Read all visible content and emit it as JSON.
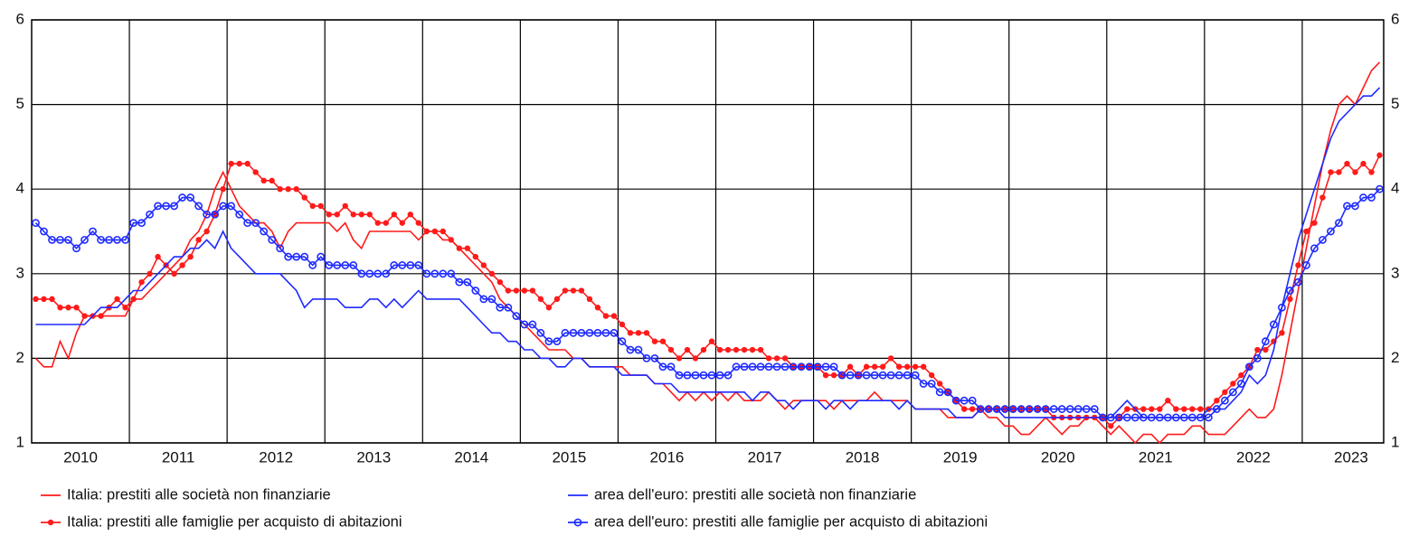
{
  "chart_data": {
    "type": "line",
    "categories": [
      null,
      null,
      null,
      null,
      null,
      null,
      "2010",
      null,
      null,
      null,
      null,
      null,
      null,
      null,
      null,
      null,
      null,
      null,
      "2011",
      null,
      null,
      null,
      null,
      null,
      null,
      null,
      null,
      null,
      null,
      null,
      "2012",
      null,
      null,
      null,
      null,
      null,
      null,
      null,
      null,
      null,
      null,
      null,
      "2013",
      null,
      null,
      null,
      null,
      null,
      null,
      null,
      null,
      null,
      null,
      null,
      "2014",
      null,
      null,
      null,
      null,
      null,
      null,
      null,
      null,
      null,
      null,
      null,
      "2015",
      null,
      null,
      null,
      null,
      null,
      null,
      null,
      null,
      null,
      null,
      null,
      "2016",
      null,
      null,
      null,
      null,
      null,
      null,
      null,
      null,
      null,
      null,
      null,
      "2017",
      null,
      null,
      null,
      null,
      null,
      null,
      null,
      null,
      null,
      null,
      null,
      "2018",
      null,
      null,
      null,
      null,
      null,
      null,
      null,
      null,
      null,
      null,
      null,
      "2019",
      null,
      null,
      null,
      null,
      null,
      null,
      null,
      null,
      null,
      null,
      null,
      "2020",
      null,
      null,
      null,
      null,
      null,
      null,
      null,
      null,
      null,
      null,
      null,
      "2021",
      null,
      null,
      null,
      null,
      null,
      null,
      null,
      null,
      null,
      null,
      null,
      "2022",
      null,
      null,
      null,
      null,
      null,
      null,
      null,
      null,
      null,
      null,
      null,
      "2023",
      null,
      null,
      null
    ],
    "series": [
      {
        "name": "Italia: prestiti alle società non finanziarie",
        "color": "#ff1a1a",
        "marker": "none",
        "values": [
          2.0,
          1.9,
          1.9,
          2.2,
          2.0,
          2.3,
          2.5,
          2.5,
          2.5,
          2.5,
          2.5,
          2.5,
          2.7,
          2.7,
          2.8,
          2.9,
          3.0,
          3.1,
          3.2,
          3.4,
          3.5,
          3.7,
          4.0,
          4.2,
          4.0,
          3.8,
          3.7,
          3.6,
          3.6,
          3.5,
          3.3,
          3.5,
          3.6,
          3.6,
          3.6,
          3.6,
          3.6,
          3.5,
          3.6,
          3.4,
          3.3,
          3.5,
          3.5,
          3.5,
          3.5,
          3.5,
          3.5,
          3.4,
          3.5,
          3.5,
          3.4,
          3.4,
          3.3,
          3.2,
          3.1,
          3.0,
          2.9,
          2.7,
          2.6,
          2.5,
          2.4,
          2.3,
          2.2,
          2.1,
          2.1,
          2.1,
          2.0,
          2.0,
          1.9,
          1.9,
          1.9,
          1.9,
          1.9,
          1.8,
          1.8,
          1.8,
          1.7,
          1.7,
          1.6,
          1.5,
          1.6,
          1.5,
          1.6,
          1.5,
          1.6,
          1.5,
          1.6,
          1.5,
          1.5,
          1.5,
          1.6,
          1.5,
          1.4,
          1.5,
          1.5,
          1.5,
          1.5,
          1.5,
          1.4,
          1.5,
          1.5,
          1.5,
          1.5,
          1.6,
          1.5,
          1.5,
          1.5,
          1.5,
          1.4,
          1.4,
          1.4,
          1.4,
          1.3,
          1.3,
          1.3,
          1.3,
          1.4,
          1.3,
          1.3,
          1.2,
          1.2,
          1.1,
          1.1,
          1.2,
          1.3,
          1.2,
          1.1,
          1.2,
          1.2,
          1.3,
          1.3,
          1.2,
          1.1,
          1.2,
          1.1,
          1.0,
          1.1,
          1.1,
          1.0,
          1.1,
          1.1,
          1.1,
          1.2,
          1.2,
          1.1,
          1.1,
          1.1,
          1.2,
          1.3,
          1.4,
          1.3,
          1.3,
          1.4,
          1.8,
          2.3,
          2.8,
          3.3,
          3.8,
          4.3,
          4.7,
          5.0,
          5.1,
          5.0,
          5.2,
          5.4,
          5.5
        ]
      },
      {
        "name": "Italia: prestiti alle famiglie per acquisto di abitazioni",
        "color": "#ff1a1a",
        "marker": "dot",
        "values": [
          2.7,
          2.7,
          2.7,
          2.6,
          2.6,
          2.6,
          2.5,
          2.5,
          2.5,
          2.6,
          2.7,
          2.6,
          2.7,
          2.9,
          3.0,
          3.2,
          3.1,
          3.0,
          3.1,
          3.2,
          3.4,
          3.5,
          3.7,
          4.0,
          4.3,
          4.3,
          4.3,
          4.2,
          4.1,
          4.1,
          4.0,
          4.0,
          4.0,
          3.9,
          3.8,
          3.8,
          3.7,
          3.7,
          3.8,
          3.7,
          3.7,
          3.7,
          3.6,
          3.6,
          3.7,
          3.6,
          3.7,
          3.6,
          3.5,
          3.5,
          3.5,
          3.4,
          3.3,
          3.3,
          3.2,
          3.1,
          3.0,
          2.9,
          2.8,
          2.8,
          2.8,
          2.8,
          2.7,
          2.6,
          2.7,
          2.8,
          2.8,
          2.8,
          2.7,
          2.6,
          2.5,
          2.5,
          2.4,
          2.3,
          2.3,
          2.3,
          2.2,
          2.2,
          2.1,
          2.0,
          2.1,
          2.0,
          2.1,
          2.2,
          2.1,
          2.1,
          2.1,
          2.1,
          2.1,
          2.1,
          2.0,
          2.0,
          2.0,
          1.9,
          1.9,
          1.9,
          1.9,
          1.8,
          1.8,
          1.8,
          1.9,
          1.8,
          1.9,
          1.9,
          1.9,
          2.0,
          1.9,
          1.9,
          1.9,
          1.9,
          1.8,
          1.7,
          1.6,
          1.5,
          1.4,
          1.4,
          1.4,
          1.4,
          1.4,
          1.4,
          1.4,
          1.4,
          1.4,
          1.4,
          1.4,
          1.3,
          1.3,
          1.3,
          1.3,
          1.3,
          1.3,
          1.3,
          1.2,
          1.3,
          1.4,
          1.4,
          1.4,
          1.4,
          1.4,
          1.5,
          1.4,
          1.4,
          1.4,
          1.4,
          1.4,
          1.5,
          1.6,
          1.7,
          1.8,
          1.9,
          2.1,
          2.1,
          2.2,
          2.3,
          2.7,
          3.1,
          3.5,
          3.6,
          3.9,
          4.2,
          4.2,
          4.3,
          4.2,
          4.3,
          4.2,
          4.4
        ]
      },
      {
        "name": "area dell'euro: prestiti alle società non finanziarie",
        "color": "#1f2bff",
        "marker": "none",
        "values": [
          2.4,
          2.4,
          2.4,
          2.4,
          2.4,
          2.4,
          2.4,
          2.5,
          2.6,
          2.6,
          2.6,
          2.7,
          2.8,
          2.8,
          2.9,
          3.0,
          3.1,
          3.2,
          3.2,
          3.3,
          3.3,
          3.4,
          3.3,
          3.5,
          3.3,
          3.2,
          3.1,
          3.0,
          3.0,
          3.0,
          3.0,
          2.9,
          2.8,
          2.6,
          2.7,
          2.7,
          2.7,
          2.7,
          2.6,
          2.6,
          2.6,
          2.7,
          2.7,
          2.6,
          2.7,
          2.6,
          2.7,
          2.8,
          2.7,
          2.7,
          2.7,
          2.7,
          2.7,
          2.6,
          2.5,
          2.4,
          2.3,
          2.3,
          2.2,
          2.2,
          2.1,
          2.1,
          2.0,
          2.0,
          1.9,
          1.9,
          2.0,
          2.0,
          1.9,
          1.9,
          1.9,
          1.9,
          1.8,
          1.8,
          1.8,
          1.8,
          1.7,
          1.7,
          1.7,
          1.6,
          1.6,
          1.6,
          1.6,
          1.6,
          1.6,
          1.6,
          1.6,
          1.6,
          1.5,
          1.6,
          1.6,
          1.5,
          1.5,
          1.4,
          1.5,
          1.5,
          1.5,
          1.4,
          1.5,
          1.5,
          1.4,
          1.5,
          1.5,
          1.5,
          1.5,
          1.5,
          1.4,
          1.5,
          1.4,
          1.4,
          1.4,
          1.4,
          1.4,
          1.3,
          1.3,
          1.3,
          1.4,
          1.4,
          1.4,
          1.3,
          1.3,
          1.3,
          1.3,
          1.3,
          1.3,
          1.3,
          1.3,
          1.3,
          1.3,
          1.3,
          1.3,
          1.3,
          1.3,
          1.4,
          1.5,
          1.4,
          1.3,
          1.3,
          1.3,
          1.3,
          1.3,
          1.3,
          1.3,
          1.3,
          1.4,
          1.4,
          1.4,
          1.5,
          1.6,
          1.8,
          1.7,
          1.8,
          2.1,
          2.6,
          3.0,
          3.4,
          3.7,
          4.0,
          4.3,
          4.6,
          4.8,
          4.9,
          5.0,
          5.1,
          5.1,
          5.2
        ]
      },
      {
        "name": "area dell'euro: prestiti alle famiglie per acquisto di abitazioni",
        "color": "#1f2bff",
        "marker": "circle",
        "values": [
          3.6,
          3.5,
          3.4,
          3.4,
          3.4,
          3.3,
          3.4,
          3.5,
          3.4,
          3.4,
          3.4,
          3.4,
          3.6,
          3.6,
          3.7,
          3.8,
          3.8,
          3.8,
          3.9,
          3.9,
          3.8,
          3.7,
          3.7,
          3.8,
          3.8,
          3.7,
          3.6,
          3.6,
          3.5,
          3.4,
          3.3,
          3.2,
          3.2,
          3.2,
          3.1,
          3.2,
          3.1,
          3.1,
          3.1,
          3.1,
          3.0,
          3.0,
          3.0,
          3.0,
          3.1,
          3.1,
          3.1,
          3.1,
          3.0,
          3.0,
          3.0,
          3.0,
          2.9,
          2.9,
          2.8,
          2.7,
          2.7,
          2.6,
          2.6,
          2.5,
          2.4,
          2.4,
          2.3,
          2.2,
          2.2,
          2.3,
          2.3,
          2.3,
          2.3,
          2.3,
          2.3,
          2.3,
          2.2,
          2.1,
          2.1,
          2.0,
          2.0,
          1.9,
          1.9,
          1.8,
          1.8,
          1.8,
          1.8,
          1.8,
          1.8,
          1.8,
          1.9,
          1.9,
          1.9,
          1.9,
          1.9,
          1.9,
          1.9,
          1.9,
          1.9,
          1.9,
          1.9,
          1.9,
          1.9,
          1.8,
          1.8,
          1.8,
          1.8,
          1.8,
          1.8,
          1.8,
          1.8,
          1.8,
          1.8,
          1.7,
          1.7,
          1.6,
          1.6,
          1.5,
          1.5,
          1.5,
          1.4,
          1.4,
          1.4,
          1.4,
          1.4,
          1.4,
          1.4,
          1.4,
          1.4,
          1.4,
          1.4,
          1.4,
          1.4,
          1.4,
          1.4,
          1.3,
          1.3,
          1.3,
          1.3,
          1.3,
          1.3,
          1.3,
          1.3,
          1.3,
          1.3,
          1.3,
          1.3,
          1.3,
          1.3,
          1.4,
          1.5,
          1.6,
          1.7,
          1.9,
          2.0,
          2.2,
          2.4,
          2.6,
          2.8,
          2.9,
          3.1,
          3.3,
          3.4,
          3.5,
          3.6,
          3.8,
          3.8,
          3.9,
          3.9,
          4.0
        ]
      }
    ],
    "ylim": [
      1,
      6
    ],
    "yticks": [
      1,
      2,
      3,
      4,
      5,
      6
    ],
    "grid": true
  }
}
